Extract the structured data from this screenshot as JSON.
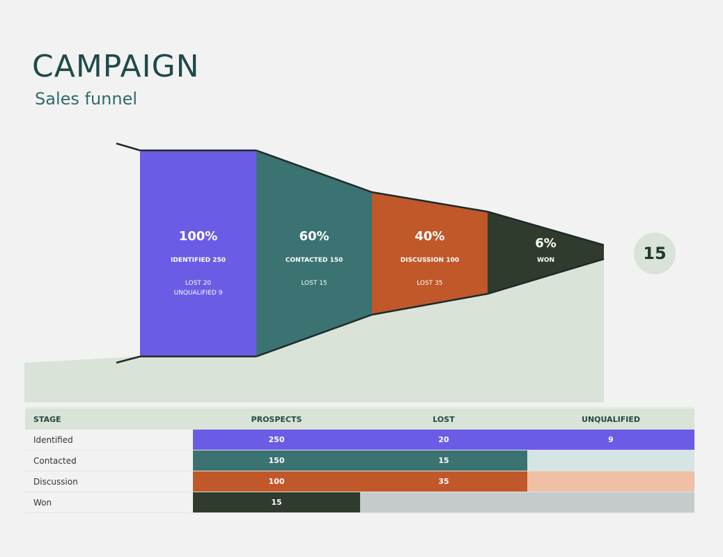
{
  "title": "CAMPAIGN",
  "subtitle": "Sales funnel",
  "colors": {
    "identified": "#6b5ce6",
    "contacted": "#3b7272",
    "discussion": "#c0582a",
    "won": "#2f3b2c",
    "background_shape": "#d9e3d8",
    "contacted_light": "#d5e5e3",
    "discussion_light": "#efbfa6",
    "won_light": "#c5cbcb"
  },
  "chart_data": {
    "type": "funnel",
    "stages": [
      {
        "pct": "100%",
        "label": "IDENTIFIED 250",
        "sub": [
          "LOST 20",
          "UNQUALIFIED 9"
        ],
        "value": 250
      },
      {
        "pct": "60%",
        "label": "CONTACTED 150",
        "sub": [
          "LOST 15"
        ],
        "value": 150
      },
      {
        "pct": "40%",
        "label": "DISCUSSION 100",
        "sub": [
          "LOST 35"
        ],
        "value": 100
      },
      {
        "pct": "6%",
        "label": "WON",
        "sub": [],
        "value": 15
      }
    ],
    "final_value": "15"
  },
  "table": {
    "headers": [
      "STAGE",
      "PROSPECTS",
      "LOST",
      "UNQUALIFIED"
    ],
    "rows": [
      [
        "Identified",
        "250",
        "20",
        "9"
      ],
      [
        "Contacted",
        "150",
        "15",
        ""
      ],
      [
        "Discussion",
        "100",
        "35",
        ""
      ],
      [
        "Won",
        "15",
        "",
        ""
      ]
    ]
  }
}
